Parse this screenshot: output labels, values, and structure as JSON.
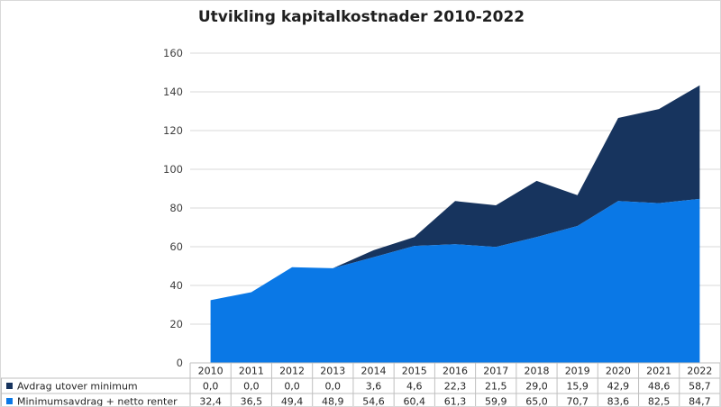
{
  "chart_data": {
    "type": "area",
    "stacked": true,
    "title": "Utvikling kapitalkostnader 2010-2022",
    "xlabel": "",
    "ylabel": "",
    "ylim": [
      0,
      160
    ],
    "yticks": [
      0,
      20,
      40,
      60,
      80,
      100,
      120,
      140,
      160
    ],
    "grid": true,
    "legend_placement": "data-table-left",
    "categories": [
      "2010",
      "2011",
      "2012",
      "2013",
      "2014",
      "2015",
      "2016",
      "2017",
      "2018",
      "2019",
      "2020",
      "2021",
      "2022"
    ],
    "series": [
      {
        "name": "Avdrag utover minimum",
        "color": "#17345e",
        "values": [
          0.0,
          0.0,
          0.0,
          0.0,
          3.6,
          4.6,
          22.3,
          21.5,
          29.0,
          15.9,
          42.9,
          48.6,
          58.7
        ],
        "labels": [
          "0,0",
          "0,0",
          "0,0",
          "0,0",
          "3,6",
          "4,6",
          "22,3",
          "21,5",
          "29,0",
          "15,9",
          "42,9",
          "48,6",
          "58,7"
        ]
      },
      {
        "name": "Minimumsavdrag + netto renter",
        "color": "#0a78e6",
        "values": [
          32.4,
          36.5,
          49.4,
          48.9,
          54.6,
          60.4,
          61.3,
          59.9,
          65.0,
          70.7,
          83.6,
          82.5,
          84.7
        ],
        "labels": [
          "32,4",
          "36,5",
          "49,4",
          "48,9",
          "54,6",
          "60,4",
          "61,3",
          "59,9",
          "65,0",
          "70,7",
          "83,6",
          "82,5",
          "84,7"
        ]
      }
    ]
  }
}
